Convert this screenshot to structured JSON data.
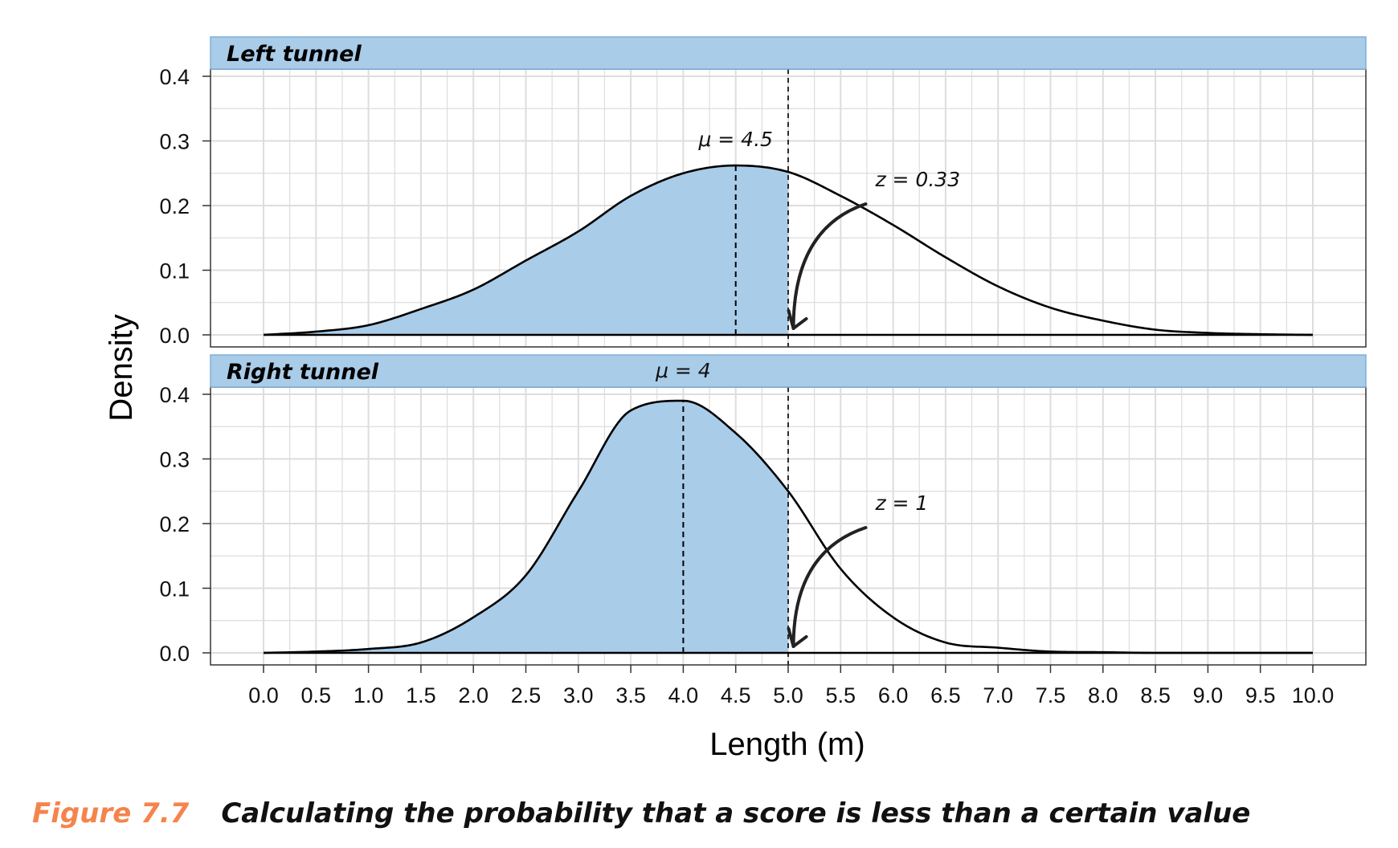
{
  "chart_data": {
    "type": "area",
    "subtype": "density-faceted",
    "x": [
      0.0,
      0.5,
      1.0,
      1.5,
      2.0,
      2.5,
      3.0,
      3.5,
      4.0,
      4.5,
      5.0,
      5.5,
      6.0,
      6.5,
      7.0,
      7.5,
      8.0,
      8.5,
      9.0,
      9.5,
      10.0
    ],
    "xlabel": "Length (m)",
    "ylabel": "Density",
    "xlim": [
      0,
      10
    ],
    "ylim": [
      0,
      0.4
    ],
    "x_ticks": [
      "0.0",
      "0.5",
      "1.0",
      "1.5",
      "2.0",
      "2.5",
      "3.0",
      "3.5",
      "4.0",
      "4.5",
      "5.0",
      "5.5",
      "6.0",
      "6.5",
      "7.0",
      "7.5",
      "8.0",
      "8.5",
      "9.0",
      "9.5",
      "10.0"
    ],
    "y_ticks": [
      "0.0",
      "0.1",
      "0.2",
      "0.3",
      "0.4"
    ],
    "grid": true,
    "threshold": 5.0,
    "panels": [
      {
        "name": "Left tunnel",
        "mean": 4.5,
        "mean_label": "μ = 4.5",
        "z_label": "z = 0.33",
        "fill_below_threshold": true,
        "y": [
          0.0,
          0.005,
          0.015,
          0.04,
          0.07,
          0.115,
          0.16,
          0.215,
          0.25,
          0.262,
          0.252,
          0.215,
          0.17,
          0.12,
          0.075,
          0.042,
          0.022,
          0.008,
          0.003,
          0.001,
          0.0
        ]
      },
      {
        "name": "Right tunnel",
        "mean": 4.0,
        "mean_label": "μ = 4",
        "z_label": "z = 1",
        "fill_below_threshold": true,
        "y": [
          0.0,
          0.002,
          0.006,
          0.016,
          0.055,
          0.12,
          0.25,
          0.375,
          0.39,
          0.34,
          0.25,
          0.13,
          0.055,
          0.016,
          0.008,
          0.002,
          0.001,
          0.0,
          0.0,
          0.0,
          0.0
        ]
      }
    ]
  },
  "colors": {
    "fill": "#a9cce9",
    "strip": "#a9cce9",
    "strip_border": "#80aed6",
    "grid": "#dddddd",
    "curve": "#000000",
    "caption_number": "#f5844c"
  },
  "caption": {
    "number": "Figure 7.7",
    "text": "Calculating the probability that a score is less than a certain value"
  }
}
